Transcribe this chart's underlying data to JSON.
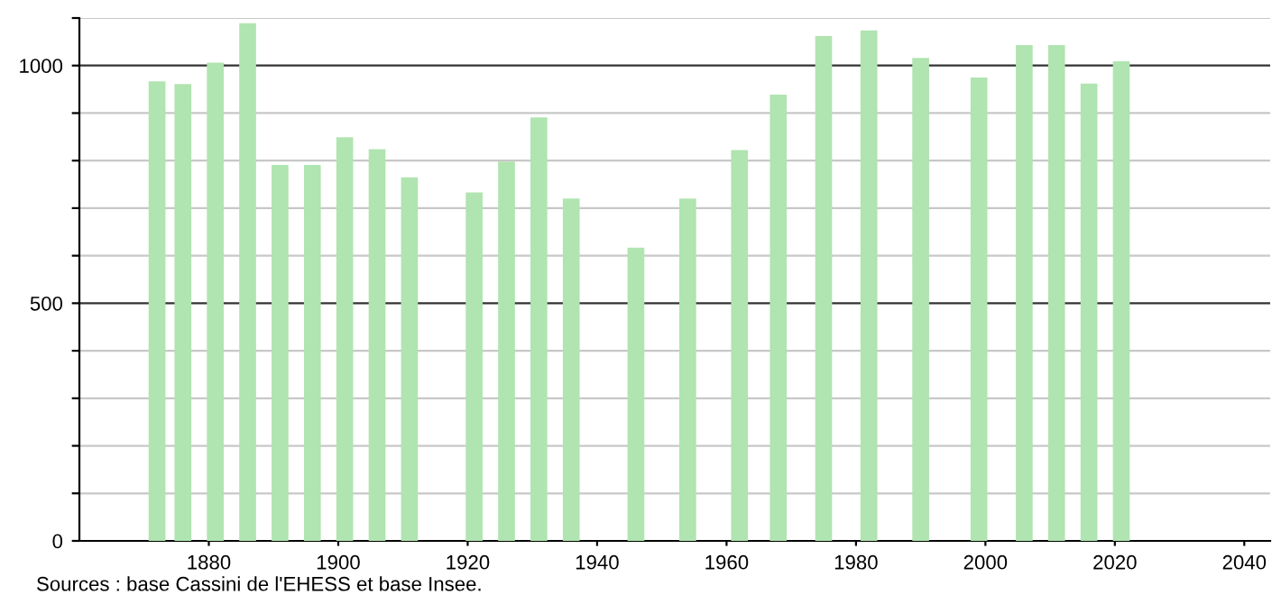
{
  "chart_data": {
    "type": "bar",
    "x": [
      1872,
      1876,
      1881,
      1886,
      1891,
      1896,
      1901,
      1906,
      1911,
      1921,
      1926,
      1931,
      1936,
      1946,
      1954,
      1962,
      1968,
      1975,
      1982,
      1990,
      1999,
      2006,
      2011,
      2016,
      2021
    ],
    "values": [
      967,
      961,
      1006,
      1089,
      791,
      791,
      849,
      824,
      765,
      733,
      798,
      891,
      720,
      617,
      720,
      822,
      939,
      1062,
      1074,
      1016,
      975,
      1043,
      1043,
      962,
      1009
    ],
    "color": "#b0e4b0",
    "xlim": [
      1860,
      2044
    ],
    "xticks": [
      1880,
      1900,
      1920,
      1940,
      1960,
      1980,
      2000,
      2020,
      2040
    ],
    "ylim": [
      0,
      1100
    ],
    "yticks": [
      0,
      {
        "value": 100,
        "label": null
      },
      {
        "value": 200,
        "label": null
      },
      {
        "value": 300,
        "label": null
      },
      {
        "value": 400,
        "label": null
      },
      500,
      {
        "value": 600,
        "label": null
      },
      {
        "value": 700,
        "label": null
      },
      {
        "value": 800,
        "label": null
      },
      {
        "value": 900,
        "label": null
      },
      1000,
      {
        "value": 1100,
        "label": null
      }
    ],
    "grid": "y",
    "annotations": [
      "Sources : base Cassini de l'EHESS et base Insee."
    ]
  }
}
